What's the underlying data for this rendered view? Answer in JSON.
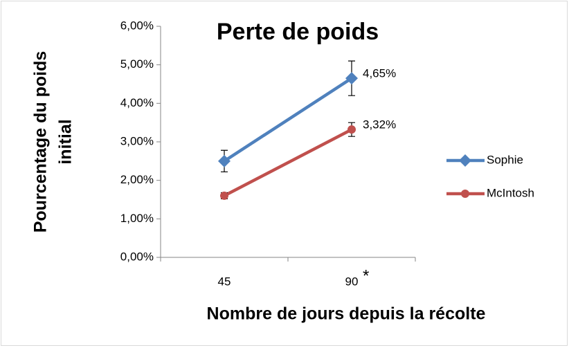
{
  "chart_data": {
    "type": "line",
    "title": "Perte de poids",
    "x_label": "Nombre de jours depuis la récolte",
    "y_label": [
      "Pourcentage du poids",
      "initial"
    ],
    "categories": [
      "45",
      "90"
    ],
    "annotations": [
      "*"
    ],
    "series": [
      {
        "name": "Sophie",
        "color": "#4f81bd",
        "marker": "diamond",
        "values": [
          2.5,
          4.65
        ],
        "errors": [
          0.28,
          0.45
        ],
        "value_labels": [
          null,
          "4,65%"
        ]
      },
      {
        "name": "McIntosh",
        "color": "#c0504d",
        "marker": "circle",
        "values": [
          1.6,
          3.32
        ],
        "errors": [
          0.08,
          0.18
        ],
        "value_labels": [
          null,
          "3,32%"
        ]
      }
    ],
    "ylim": [
      0,
      6
    ],
    "yticks": [
      {
        "value": 0,
        "label": "0,00%"
      },
      {
        "value": 1,
        "label": "1,00%"
      },
      {
        "value": 2,
        "label": "2,00%"
      },
      {
        "value": 3,
        "label": "3,00%"
      },
      {
        "value": 4,
        "label": "4,00%"
      },
      {
        "value": 5,
        "label": "5,00%"
      },
      {
        "value": 6,
        "label": "6,00%"
      }
    ],
    "grid": false,
    "legend": "right"
  }
}
